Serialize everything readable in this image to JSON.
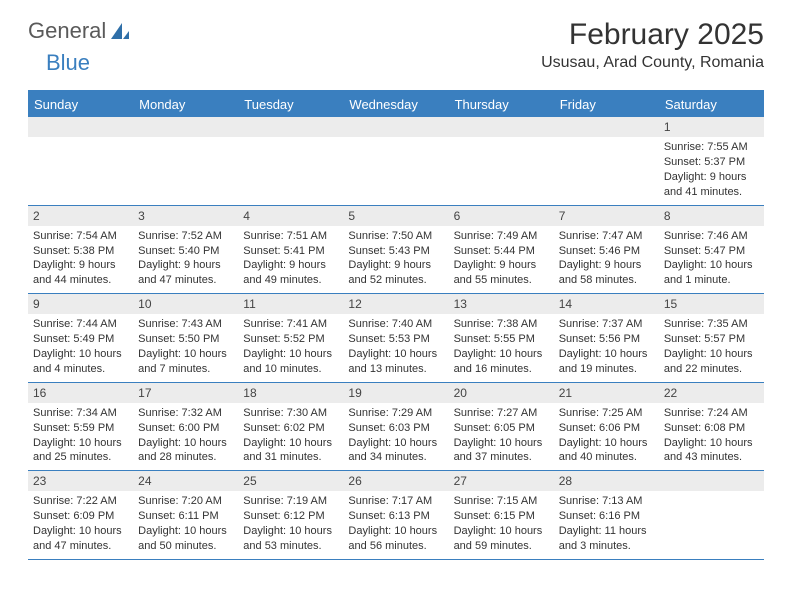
{
  "logo": {
    "text1": "General",
    "text2": "Blue"
  },
  "title": "February 2025",
  "location": "Ususau, Arad County, Romania",
  "colors": {
    "header_bg": "#3a7fbf",
    "header_text": "#ffffff",
    "daynum_bg": "#ececec",
    "border": "#3a7fbf",
    "text": "#333333"
  },
  "day_headers": [
    "Sunday",
    "Monday",
    "Tuesday",
    "Wednesday",
    "Thursday",
    "Friday",
    "Saturday"
  ],
  "weeks": [
    [
      {
        "n": "",
        "sr": "",
        "ss": "",
        "dl": ""
      },
      {
        "n": "",
        "sr": "",
        "ss": "",
        "dl": ""
      },
      {
        "n": "",
        "sr": "",
        "ss": "",
        "dl": ""
      },
      {
        "n": "",
        "sr": "",
        "ss": "",
        "dl": ""
      },
      {
        "n": "",
        "sr": "",
        "ss": "",
        "dl": ""
      },
      {
        "n": "",
        "sr": "",
        "ss": "",
        "dl": ""
      },
      {
        "n": "1",
        "sr": "Sunrise: 7:55 AM",
        "ss": "Sunset: 5:37 PM",
        "dl": "Daylight: 9 hours and 41 minutes."
      }
    ],
    [
      {
        "n": "2",
        "sr": "Sunrise: 7:54 AM",
        "ss": "Sunset: 5:38 PM",
        "dl": "Daylight: 9 hours and 44 minutes."
      },
      {
        "n": "3",
        "sr": "Sunrise: 7:52 AM",
        "ss": "Sunset: 5:40 PM",
        "dl": "Daylight: 9 hours and 47 minutes."
      },
      {
        "n": "4",
        "sr": "Sunrise: 7:51 AM",
        "ss": "Sunset: 5:41 PM",
        "dl": "Daylight: 9 hours and 49 minutes."
      },
      {
        "n": "5",
        "sr": "Sunrise: 7:50 AM",
        "ss": "Sunset: 5:43 PM",
        "dl": "Daylight: 9 hours and 52 minutes."
      },
      {
        "n": "6",
        "sr": "Sunrise: 7:49 AM",
        "ss": "Sunset: 5:44 PM",
        "dl": "Daylight: 9 hours and 55 minutes."
      },
      {
        "n": "7",
        "sr": "Sunrise: 7:47 AM",
        "ss": "Sunset: 5:46 PM",
        "dl": "Daylight: 9 hours and 58 minutes."
      },
      {
        "n": "8",
        "sr": "Sunrise: 7:46 AM",
        "ss": "Sunset: 5:47 PM",
        "dl": "Daylight: 10 hours and 1 minute."
      }
    ],
    [
      {
        "n": "9",
        "sr": "Sunrise: 7:44 AM",
        "ss": "Sunset: 5:49 PM",
        "dl": "Daylight: 10 hours and 4 minutes."
      },
      {
        "n": "10",
        "sr": "Sunrise: 7:43 AM",
        "ss": "Sunset: 5:50 PM",
        "dl": "Daylight: 10 hours and 7 minutes."
      },
      {
        "n": "11",
        "sr": "Sunrise: 7:41 AM",
        "ss": "Sunset: 5:52 PM",
        "dl": "Daylight: 10 hours and 10 minutes."
      },
      {
        "n": "12",
        "sr": "Sunrise: 7:40 AM",
        "ss": "Sunset: 5:53 PM",
        "dl": "Daylight: 10 hours and 13 minutes."
      },
      {
        "n": "13",
        "sr": "Sunrise: 7:38 AM",
        "ss": "Sunset: 5:55 PM",
        "dl": "Daylight: 10 hours and 16 minutes."
      },
      {
        "n": "14",
        "sr": "Sunrise: 7:37 AM",
        "ss": "Sunset: 5:56 PM",
        "dl": "Daylight: 10 hours and 19 minutes."
      },
      {
        "n": "15",
        "sr": "Sunrise: 7:35 AM",
        "ss": "Sunset: 5:57 PM",
        "dl": "Daylight: 10 hours and 22 minutes."
      }
    ],
    [
      {
        "n": "16",
        "sr": "Sunrise: 7:34 AM",
        "ss": "Sunset: 5:59 PM",
        "dl": "Daylight: 10 hours and 25 minutes."
      },
      {
        "n": "17",
        "sr": "Sunrise: 7:32 AM",
        "ss": "Sunset: 6:00 PM",
        "dl": "Daylight: 10 hours and 28 minutes."
      },
      {
        "n": "18",
        "sr": "Sunrise: 7:30 AM",
        "ss": "Sunset: 6:02 PM",
        "dl": "Daylight: 10 hours and 31 minutes."
      },
      {
        "n": "19",
        "sr": "Sunrise: 7:29 AM",
        "ss": "Sunset: 6:03 PM",
        "dl": "Daylight: 10 hours and 34 minutes."
      },
      {
        "n": "20",
        "sr": "Sunrise: 7:27 AM",
        "ss": "Sunset: 6:05 PM",
        "dl": "Daylight: 10 hours and 37 minutes."
      },
      {
        "n": "21",
        "sr": "Sunrise: 7:25 AM",
        "ss": "Sunset: 6:06 PM",
        "dl": "Daylight: 10 hours and 40 minutes."
      },
      {
        "n": "22",
        "sr": "Sunrise: 7:24 AM",
        "ss": "Sunset: 6:08 PM",
        "dl": "Daylight: 10 hours and 43 minutes."
      }
    ],
    [
      {
        "n": "23",
        "sr": "Sunrise: 7:22 AM",
        "ss": "Sunset: 6:09 PM",
        "dl": "Daylight: 10 hours and 47 minutes."
      },
      {
        "n": "24",
        "sr": "Sunrise: 7:20 AM",
        "ss": "Sunset: 6:11 PM",
        "dl": "Daylight: 10 hours and 50 minutes."
      },
      {
        "n": "25",
        "sr": "Sunrise: 7:19 AM",
        "ss": "Sunset: 6:12 PM",
        "dl": "Daylight: 10 hours and 53 minutes."
      },
      {
        "n": "26",
        "sr": "Sunrise: 7:17 AM",
        "ss": "Sunset: 6:13 PM",
        "dl": "Daylight: 10 hours and 56 minutes."
      },
      {
        "n": "27",
        "sr": "Sunrise: 7:15 AM",
        "ss": "Sunset: 6:15 PM",
        "dl": "Daylight: 10 hours and 59 minutes."
      },
      {
        "n": "28",
        "sr": "Sunrise: 7:13 AM",
        "ss": "Sunset: 6:16 PM",
        "dl": "Daylight: 11 hours and 3 minutes."
      },
      {
        "n": "",
        "sr": "",
        "ss": "",
        "dl": ""
      }
    ]
  ]
}
